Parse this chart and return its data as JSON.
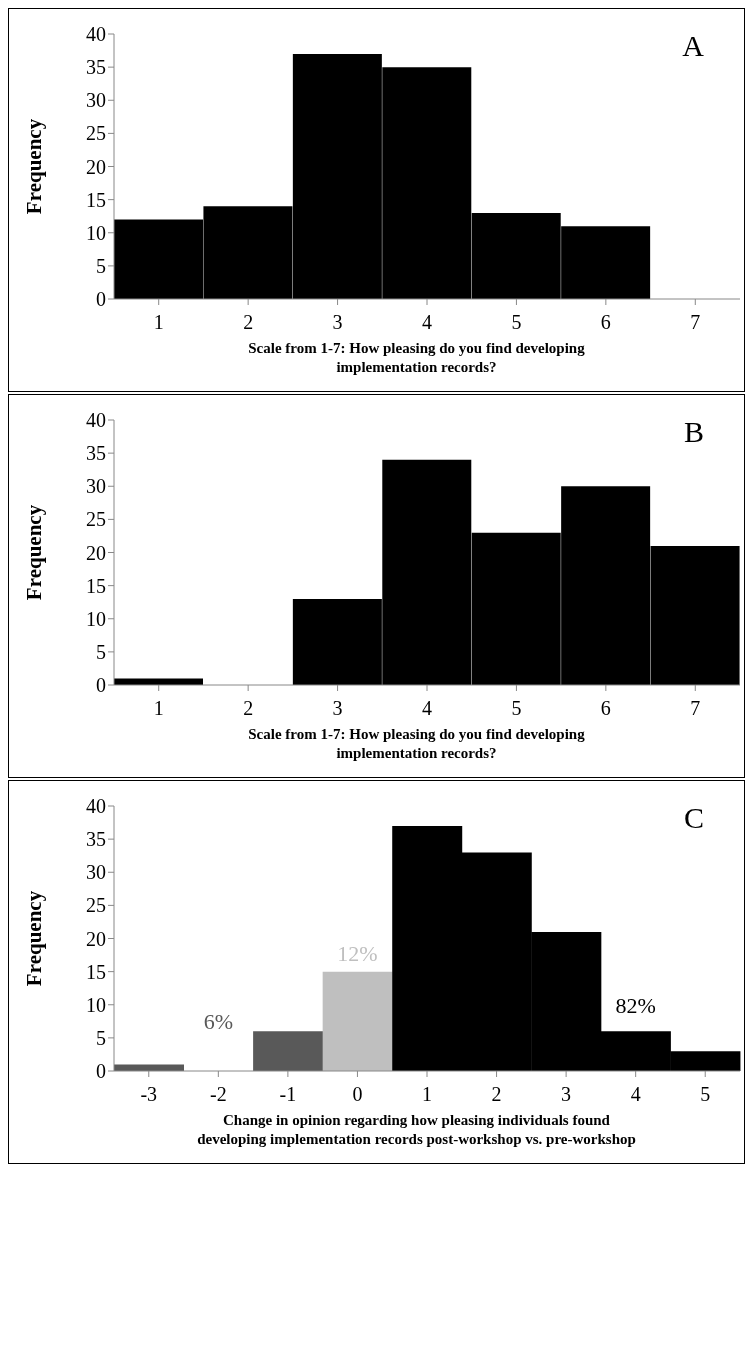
{
  "chart_data": [
    {
      "type": "bar",
      "categories": [
        "1",
        "2",
        "3",
        "4",
        "5",
        "6",
        "7"
      ],
      "values": [
        12,
        14,
        37,
        35,
        13,
        11,
        0
      ],
      "color": "#000000",
      "ylim": [
        0,
        40
      ],
      "yticks": [
        0,
        5,
        10,
        15,
        20,
        25,
        30,
        35,
        40
      ],
      "xlabel": "Scale from 1-7: How pleasing do you find developing implementation records?",
      "ylabel": "Frequency",
      "annotations": [
        "A"
      ],
      "grid": false,
      "legend": false
    },
    {
      "type": "bar",
      "categories": [
        "1",
        "2",
        "3",
        "4",
        "5",
        "6",
        "7"
      ],
      "values": [
        1,
        0,
        13,
        34,
        23,
        30,
        21
      ],
      "color": "#000000",
      "ylim": [
        0,
        40
      ],
      "yticks": [
        0,
        5,
        10,
        15,
        20,
        25,
        30,
        35,
        40
      ],
      "xlabel": "Scale from 1-7: How pleasing do you find developing implementation records?",
      "ylabel": "Frequency",
      "annotations": [
        "B"
      ],
      "grid": false,
      "legend": false
    },
    {
      "type": "bar",
      "categories": [
        "-3",
        "-2",
        "-1",
        "0",
        "1",
        "2",
        "3",
        "4",
        "5"
      ],
      "values": [
        1,
        0,
        6,
        15,
        37,
        33,
        21,
        6,
        3
      ],
      "colors": [
        "#595959",
        "#595959",
        "#595959",
        "#bfbfbf",
        "#000000",
        "#000000",
        "#000000",
        "#000000",
        "#000000"
      ],
      "ylim": [
        0,
        40
      ],
      "yticks": [
        0,
        5,
        10,
        15,
        20,
        25,
        30,
        35,
        40
      ],
      "xlabel": "Change in opinion regarding how pleasing individuals found developing implementation records post-workshop vs. pre-workshop",
      "ylabel": "Frequency",
      "annotations": [
        "C",
        "6%",
        "12%",
        "82%"
      ],
      "grid": false,
      "legend": false
    }
  ]
}
